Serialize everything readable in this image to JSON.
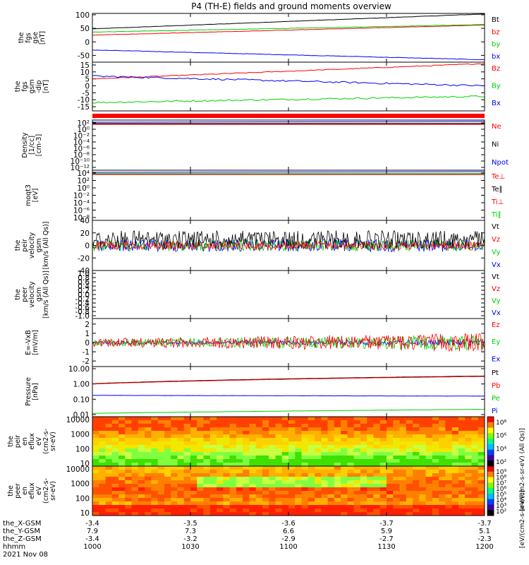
{
  "title": "P4 (TH-E) fields and ground moments overview",
  "chart_data": [
    {
      "type": "line",
      "ylabel": [
        "the",
        "fgs",
        "gse",
        "[nT]"
      ],
      "yticks": [
        100,
        50,
        0,
        -50
      ],
      "ylim": [
        -75,
        105
      ],
      "legend": [
        "Bt",
        "bz",
        "by",
        "bx"
      ],
      "series": [
        {
          "name": "Bt",
          "color": "#000000",
          "start": 48,
          "end": 103,
          "noise": 0.3
        },
        {
          "name": "bz",
          "color": "#ff0000",
          "start": 25,
          "end": 62,
          "noise": 0.3
        },
        {
          "name": "by",
          "color": "#00d000",
          "start": 36,
          "end": 64,
          "noise": 0.4
        },
        {
          "name": "bx",
          "color": "#0000ff",
          "start": -30,
          "end": -66,
          "noise": 0.4
        }
      ]
    },
    {
      "type": "line",
      "ylabel": [
        "the",
        "fgs",
        "gsm",
        "-dip",
        "[nT]"
      ],
      "yticks": [
        15,
        10,
        5,
        0,
        -5,
        -10,
        -15
      ],
      "ylim": [
        -18,
        17
      ],
      "legend": [
        "Bz",
        "By",
        "Bx"
      ],
      "series": [
        {
          "name": "Bz",
          "color": "#ff0000",
          "start": 5,
          "end": 16,
          "noise": 0.15
        },
        {
          "name": "By",
          "color": "#00d000",
          "start": -12,
          "end": -7.5,
          "noise": 0.3
        },
        {
          "name": "Bx",
          "color": "#0000ff",
          "start": 7,
          "end": 0,
          "noise": 0.3
        }
      ]
    },
    {
      "type": "line",
      "ylabel": [
        "Density",
        "[1/cc]",
        "[cm-3]"
      ],
      "yticks": [
        "10²",
        "10⁰",
        "10⁻²",
        "10⁻⁴",
        "10⁻⁶",
        "10⁻⁸",
        "10⁻¹⁰",
        "10⁻¹²"
      ],
      "legend": [
        "Ne",
        "Ni",
        "Npot"
      ],
      "legend_colors": [
        "#ff0000",
        "#000000",
        "#0000ff"
      ]
    },
    {
      "type": "line",
      "ylabel": [
        "moqt3",
        "[eV]"
      ],
      "yticks": [
        "10⁴",
        "10²",
        "10⁰",
        "10⁻²",
        "10⁻⁴",
        "10⁻⁶",
        "10⁻⁸"
      ],
      "legend": [
        "Te⊥",
        "Te∥",
        "Ti⊥",
        "Ti∥"
      ],
      "legend_colors": [
        "#ff0000",
        "#000000",
        "#ff0000",
        "#00d000"
      ]
    },
    {
      "type": "line",
      "ylabel": [
        "the",
        "peir",
        "velocity",
        "gsm",
        "[km/s (All Qs)]"
      ],
      "yticks": [
        40,
        20,
        0,
        -20,
        -40
      ],
      "ylim": [
        -40,
        40
      ],
      "legend": [
        "Vt",
        "Vz",
        "Vy",
        "Vx"
      ],
      "legend_colors": [
        "#000000",
        "#ff0000",
        "#00d000",
        "#0000ff"
      ]
    },
    {
      "type": "line",
      "ylabel": [
        "the",
        "peer",
        "velocity",
        "gsm",
        "[km/s (All Qs)]"
      ],
      "yticks": [
        "1.0",
        "0.8",
        "0.6",
        "0.4",
        "0.2",
        "0.0",
        "-0.2",
        "-0.4",
        "-0.6",
        "-0.8",
        "-1.0"
      ],
      "ylim": [
        -1,
        1
      ],
      "legend": [
        "Vt",
        "Vz",
        "Vy",
        "Vx"
      ],
      "legend_colors": [
        "#000000",
        "#ff0000",
        "#00d000",
        "#0000ff"
      ]
    },
    {
      "type": "line",
      "ylabel": [
        "E=-VxB",
        "[mV/m]"
      ],
      "yticks": [
        2,
        1,
        0,
        -1,
        -2
      ],
      "ylim": [
        -2.6,
        2.6
      ],
      "legend": [
        "Ez",
        "Ey",
        "Ex"
      ],
      "legend_colors": [
        "#ff0000",
        "#00d000",
        "#0000ff"
      ]
    },
    {
      "type": "line",
      "ylabel": [
        "Pressure",
        "[nPa]"
      ],
      "yticks": [
        "10.00",
        "1.00",
        "0.10",
        "0.01"
      ],
      "ylim": [
        0.01,
        10
      ],
      "scale": "log",
      "legend": [
        "Pt",
        "Pb",
        "Pe",
        "Pi"
      ],
      "series": [
        {
          "name": "Pt",
          "color": "#000000",
          "start": 1.05,
          "end": 3.3,
          "noise": 0.01
        },
        {
          "name": "Pb",
          "color": "#ff0000",
          "start": 1.0,
          "end": 3.1,
          "noise": 0.01
        },
        {
          "name": "Pe",
          "color": "#00d000",
          "start": 0.012,
          "end": 0.022,
          "noise": 0.02
        },
        {
          "name": "Pi",
          "color": "#0000ff",
          "start": 0.18,
          "end": 0.16,
          "noise": 0.02
        }
      ]
    },
    {
      "type": "heatmap",
      "ylabel": [
        "the",
        "peir",
        "en",
        "eflux",
        "eV",
        "(cm2-s-",
        "sr-eV)"
      ],
      "yticks": [
        "10000",
        "1000",
        "100",
        "10"
      ],
      "colorbar_ticks": [
        "10⁸",
        "10⁶",
        "10⁴",
        "10²"
      ],
      "colorbar_label": "[eV/(cm2-s-sr-eV) (All Qs)]"
    },
    {
      "type": "heatmap",
      "ylabel": [
        "the",
        "peer",
        "en",
        "eflux",
        "eV",
        "(cm2-s-",
        "sr-eV)"
      ],
      "yticks": [
        "10000",
        "1000",
        "100",
        "10"
      ],
      "colorbar_ticks": [
        "10⁹",
        "10⁸",
        "10⁷",
        "10⁶",
        "10⁵",
        "10⁴",
        "10³",
        "10²"
      ],
      "colorbar_label": "[eV/(cm2-s-sr-eV)]"
    }
  ],
  "x_axis": {
    "rows": [
      {
        "label": "the_X-GSM",
        "values": [
          "-3.4",
          "-3.5",
          "-3.6",
          "-3.7",
          "-3.7"
        ]
      },
      {
        "label": "the_Y-GSM",
        "values": [
          "7.9",
          "7.3",
          "6.6",
          "5.9",
          "5.1"
        ]
      },
      {
        "label": "the_Z-GSM",
        "values": [
          "-3.4",
          "-3.2",
          "-2.9",
          "-2.7",
          "-2.3"
        ]
      },
      {
        "label": "hhmm",
        "values": [
          "1000",
          "1030",
          "1100",
          "1130",
          "1200"
        ]
      }
    ],
    "date": "2021 Nov 08"
  }
}
